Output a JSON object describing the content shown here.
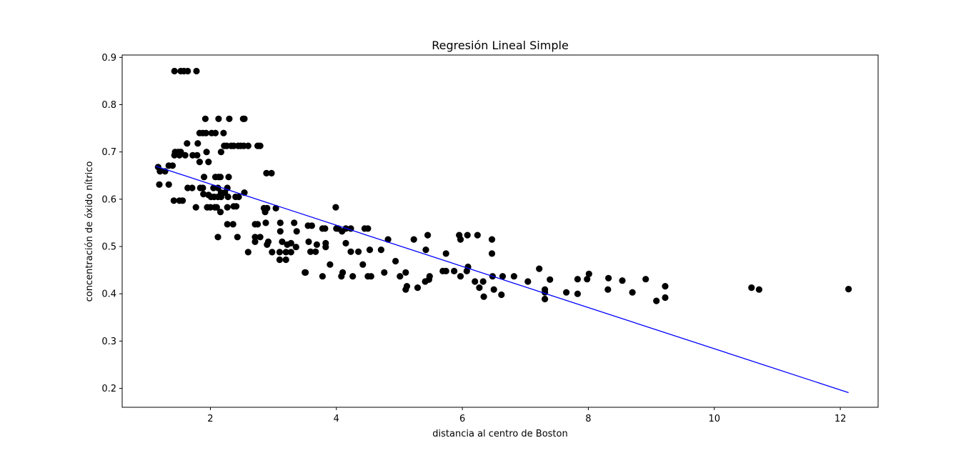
{
  "chart_data": {
    "type": "scatter",
    "title": "Regresión Lineal Simple",
    "xlabel": "distancia al centro de Boston",
    "ylabel": "concentración de óxido nítrico",
    "xlim": [
      0.6,
      12.6
    ],
    "ylim": [
      0.16,
      0.905
    ],
    "xticks": [
      2,
      4,
      6,
      8,
      10,
      12
    ],
    "yticks": [
      0.2,
      0.3,
      0.4,
      0.5,
      0.6,
      0.7,
      0.8,
      0.9
    ],
    "grid": false,
    "legend": "none",
    "colors": {
      "points": "#000000",
      "line": "#0000ff"
    },
    "series": [
      {
        "type": "scatter",
        "points": [
          [
            1.43,
            0.871
          ],
          [
            1.53,
            0.871
          ],
          [
            1.58,
            0.871
          ],
          [
            1.64,
            0.871
          ],
          [
            1.78,
            0.871
          ],
          [
            1.92,
            0.77
          ],
          [
            2.13,
            0.77
          ],
          [
            2.3,
            0.77
          ],
          [
            2.52,
            0.77
          ],
          [
            2.54,
            0.77
          ],
          [
            1.83,
            0.74
          ],
          [
            1.88,
            0.74
          ],
          [
            1.93,
            0.74
          ],
          [
            2.02,
            0.74
          ],
          [
            2.08,
            0.74
          ],
          [
            2.21,
            0.74
          ],
          [
            1.63,
            0.718
          ],
          [
            1.8,
            0.718
          ],
          [
            2.22,
            0.713
          ],
          [
            2.26,
            0.713
          ],
          [
            2.33,
            0.713
          ],
          [
            2.37,
            0.713
          ],
          [
            2.44,
            0.713
          ],
          [
            2.48,
            0.713
          ],
          [
            2.53,
            0.713
          ],
          [
            2.6,
            0.713
          ],
          [
            2.75,
            0.713
          ],
          [
            2.79,
            0.713
          ],
          [
            1.44,
            0.7
          ],
          [
            1.49,
            0.7
          ],
          [
            1.53,
            0.7
          ],
          [
            1.94,
            0.7
          ],
          [
            2.17,
            0.7
          ],
          [
            1.43,
            0.693
          ],
          [
            1.51,
            0.693
          ],
          [
            1.6,
            0.693
          ],
          [
            1.72,
            0.693
          ],
          [
            1.79,
            0.693
          ],
          [
            1.83,
            0.679
          ],
          [
            1.97,
            0.679
          ],
          [
            1.17,
            0.668
          ],
          [
            1.34,
            0.671
          ],
          [
            1.4,
            0.671
          ],
          [
            1.2,
            0.659
          ],
          [
            1.28,
            0.659
          ],
          [
            2.89,
            0.655
          ],
          [
            2.97,
            0.655
          ],
          [
            1.9,
            0.647
          ],
          [
            2.08,
            0.647
          ],
          [
            2.13,
            0.647
          ],
          [
            2.16,
            0.647
          ],
          [
            2.29,
            0.647
          ],
          [
            1.19,
            0.631
          ],
          [
            1.34,
            0.631
          ],
          [
            1.64,
            0.624
          ],
          [
            1.71,
            0.624
          ],
          [
            1.84,
            0.624
          ],
          [
            1.88,
            0.624
          ],
          [
            2.05,
            0.624
          ],
          [
            2.12,
            0.624
          ],
          [
            2.27,
            0.624
          ],
          [
            2.54,
            0.614
          ],
          [
            2.17,
            0.614
          ],
          [
            2.23,
            0.614
          ],
          [
            1.89,
            0.611
          ],
          [
            1.97,
            0.609
          ],
          [
            2.01,
            0.605
          ],
          [
            2.06,
            0.605
          ],
          [
            2.12,
            0.605
          ],
          [
            2.17,
            0.605
          ],
          [
            2.28,
            0.605
          ],
          [
            2.4,
            0.605
          ],
          [
            2.45,
            0.605
          ],
          [
            1.42,
            0.597
          ],
          [
            1.51,
            0.597
          ],
          [
            1.56,
            0.597
          ],
          [
            2.37,
            0.585
          ],
          [
            2.41,
            0.585
          ],
          [
            1.77,
            0.583
          ],
          [
            1.95,
            0.583
          ],
          [
            2.0,
            0.583
          ],
          [
            2.07,
            0.583
          ],
          [
            2.1,
            0.583
          ],
          [
            2.27,
            0.583
          ],
          [
            2.85,
            0.581
          ],
          [
            2.9,
            0.581
          ],
          [
            3.04,
            0.581
          ],
          [
            3.99,
            0.583
          ],
          [
            2.16,
            0.573
          ],
          [
            2.87,
            0.573
          ],
          [
            2.27,
            0.547
          ],
          [
            2.36,
            0.547
          ],
          [
            2.71,
            0.547
          ],
          [
            2.75,
            0.547
          ],
          [
            2.88,
            0.55
          ],
          [
            3.11,
            0.55
          ],
          [
            3.33,
            0.55
          ],
          [
            3.55,
            0.544
          ],
          [
            3.61,
            0.544
          ],
          [
            3.78,
            0.538
          ],
          [
            3.82,
            0.538
          ],
          [
            4.0,
            0.538
          ],
          [
            4.03,
            0.538
          ],
          [
            4.09,
            0.532
          ],
          [
            4.15,
            0.538
          ],
          [
            4.23,
            0.538
          ],
          [
            4.45,
            0.538
          ],
          [
            4.5,
            0.538
          ],
          [
            3.11,
            0.532
          ],
          [
            3.37,
            0.532
          ],
          [
            2.12,
            0.52
          ],
          [
            2.43,
            0.52
          ],
          [
            2.71,
            0.52
          ],
          [
            2.79,
            0.52
          ],
          [
            4.82,
            0.515
          ],
          [
            5.23,
            0.515
          ],
          [
            5.97,
            0.515
          ],
          [
            6.47,
            0.515
          ],
          [
            5.45,
            0.524
          ],
          [
            5.95,
            0.524
          ],
          [
            6.08,
            0.524
          ],
          [
            6.24,
            0.524
          ],
          [
            2.71,
            0.51
          ],
          [
            2.92,
            0.51
          ],
          [
            3.14,
            0.51
          ],
          [
            3.28,
            0.507
          ],
          [
            3.56,
            0.51
          ],
          [
            3.83,
            0.507
          ],
          [
            4.15,
            0.507
          ],
          [
            2.9,
            0.504
          ],
          [
            3.22,
            0.504
          ],
          [
            3.36,
            0.499
          ],
          [
            3.69,
            0.504
          ],
          [
            3.83,
            0.499
          ],
          [
            2.6,
            0.488
          ],
          [
            2.98,
            0.488
          ],
          [
            3.1,
            0.488
          ],
          [
            3.2,
            0.488
          ],
          [
            3.28,
            0.488
          ],
          [
            3.59,
            0.489
          ],
          [
            3.67,
            0.489
          ],
          [
            4.23,
            0.489
          ],
          [
            4.35,
            0.489
          ],
          [
            4.53,
            0.493
          ],
          [
            4.71,
            0.493
          ],
          [
            5.42,
            0.493
          ],
          [
            6.47,
            0.485
          ],
          [
            5.74,
            0.485
          ],
          [
            3.1,
            0.472
          ],
          [
            3.2,
            0.472
          ],
          [
            3.9,
            0.462
          ],
          [
            4.42,
            0.462
          ],
          [
            4.94,
            0.469
          ],
          [
            3.5,
            0.445
          ],
          [
            3.51,
            0.445
          ],
          [
            4.1,
            0.445
          ],
          [
            4.76,
            0.445
          ],
          [
            5.1,
            0.445
          ],
          [
            5.69,
            0.448
          ],
          [
            5.74,
            0.448
          ],
          [
            5.87,
            0.448
          ],
          [
            6.07,
            0.448
          ],
          [
            3.78,
            0.437
          ],
          [
            4.08,
            0.437
          ],
          [
            4.26,
            0.437
          ],
          [
            4.5,
            0.437
          ],
          [
            4.55,
            0.437
          ],
          [
            5.01,
            0.437
          ],
          [
            5.48,
            0.437
          ],
          [
            5.97,
            0.437
          ],
          [
            6.09,
            0.457
          ],
          [
            6.48,
            0.437
          ],
          [
            6.64,
            0.437
          ],
          [
            6.82,
            0.437
          ],
          [
            7.83,
            0.431
          ],
          [
            7.98,
            0.431
          ],
          [
            8.32,
            0.433
          ],
          [
            8.54,
            0.428
          ],
          [
            8.91,
            0.431
          ],
          [
            5.41,
            0.426
          ],
          [
            5.47,
            0.43
          ],
          [
            6.2,
            0.426
          ],
          [
            6.33,
            0.426
          ],
          [
            7.04,
            0.426
          ],
          [
            7.39,
            0.43
          ],
          [
            7.22,
            0.453
          ],
          [
            8.01,
            0.442
          ],
          [
            5.12,
            0.416
          ],
          [
            5.1,
            0.409
          ],
          [
            5.29,
            0.413
          ],
          [
            6.27,
            0.413
          ],
          [
            6.5,
            0.409
          ],
          [
            7.31,
            0.409
          ],
          [
            7.31,
            0.403
          ],
          [
            7.65,
            0.403
          ],
          [
            7.83,
            0.4
          ],
          [
            8.31,
            0.409
          ],
          [
            8.7,
            0.403
          ],
          [
            9.22,
            0.416
          ],
          [
            6.34,
            0.394
          ],
          [
            6.62,
            0.398
          ],
          [
            7.31,
            0.389
          ],
          [
            9.08,
            0.385
          ],
          [
            9.22,
            0.392
          ],
          [
            10.59,
            0.413
          ],
          [
            10.71,
            0.409
          ],
          [
            12.13,
            0.41
          ]
        ]
      },
      {
        "type": "line",
        "points": [
          [
            1.13,
            0.67
          ],
          [
            12.13,
            0.191
          ]
        ]
      }
    ]
  }
}
